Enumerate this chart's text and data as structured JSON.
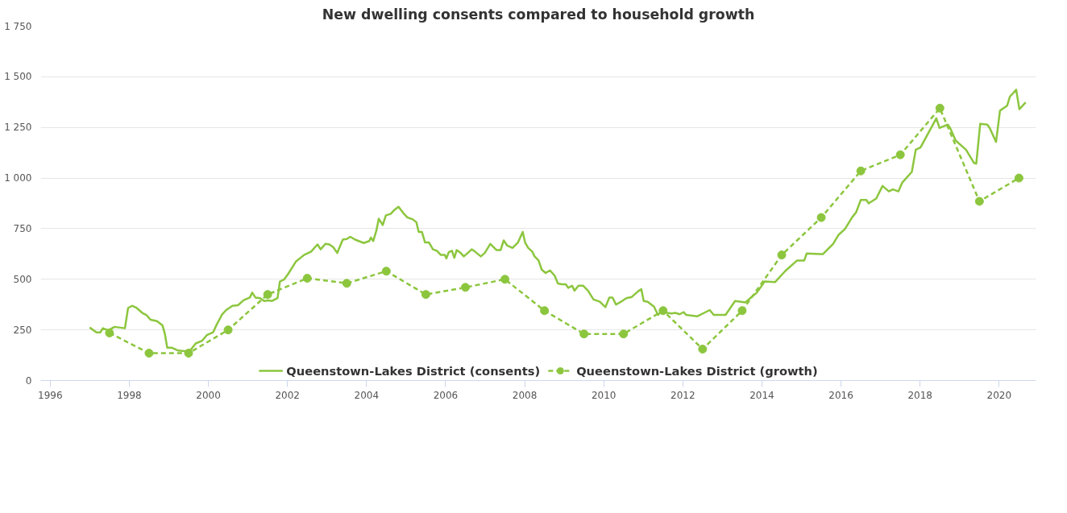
{
  "chart_data": {
    "type": "line",
    "title": "New dwelling consents compared to household growth",
    "xlim": [
      1995.76,
      2020.93
    ],
    "xticks": [
      1996,
      1998,
      2000,
      2002,
      2004,
      2006,
      2008,
      2010,
      2012,
      2014,
      2016,
      2018,
      2020
    ],
    "ylim": [
      0,
      1750
    ],
    "yticks": [
      0,
      250,
      500,
      750,
      {
        "value": 1000,
        "label": "1 000"
      },
      {
        "value": 1250,
        "label": "1 250"
      },
      {
        "value": 1500,
        "label": "1 500"
      },
      {
        "value": 1750,
        "label": "1 750"
      }
    ],
    "grid": "y",
    "legend": "bottom",
    "series": [
      {
        "name": "Queenstown-Lakes District (consents)",
        "color": "#8cc63e",
        "line_style": "solid",
        "marker": "none",
        "x": [
          1997.0,
          1997.17,
          1997.27,
          1997.33,
          1997.47,
          1997.63,
          1997.89,
          1997.97,
          1998.07,
          1998.19,
          1998.33,
          1998.43,
          1998.54,
          1998.7,
          1998.84,
          1998.9,
          1998.96,
          1999.08,
          1999.24,
          1999.4,
          1999.54,
          1999.68,
          1999.84,
          1999.96,
          2000.12,
          2000.21,
          2000.35,
          2000.45,
          2000.61,
          2000.75,
          2000.89,
          2001.05,
          2001.11,
          2001.19,
          2001.31,
          2001.41,
          2001.51,
          2001.61,
          2001.75,
          2001.81,
          2001.92,
          2002.02,
          2002.22,
          2002.42,
          2002.6,
          2002.76,
          2002.84,
          2002.96,
          2003.06,
          2003.16,
          2003.26,
          2003.4,
          2003.5,
          2003.59,
          2003.71,
          2003.93,
          2004.07,
          2004.11,
          2004.17,
          2004.25,
          2004.31,
          2004.41,
          2004.49,
          2004.61,
          2004.69,
          2004.81,
          2004.93,
          2005.03,
          2005.17,
          2005.26,
          2005.32,
          2005.4,
          2005.48,
          2005.58,
          2005.68,
          2005.78,
          2005.88,
          2005.98,
          2006.02,
          2006.08,
          2006.16,
          2006.22,
          2006.28,
          2006.38,
          2006.46,
          2006.56,
          2006.66,
          2006.76,
          2006.89,
          2006.99,
          2007.13,
          2007.29,
          2007.39,
          2007.47,
          2007.55,
          2007.69,
          2007.83,
          2007.95,
          2008.01,
          2008.09,
          2008.19,
          2008.25,
          2008.35,
          2008.43,
          2008.53,
          2008.64,
          2008.76,
          2008.84,
          2008.94,
          2009.04,
          2009.1,
          2009.2,
          2009.26,
          2009.36,
          2009.48,
          2009.6,
          2009.74,
          2009.9,
          2010.04,
          2010.14,
          2010.22,
          2010.31,
          2010.41,
          2010.57,
          2010.71,
          2010.87,
          2010.95,
          2011.01,
          2011.11,
          2011.27,
          2011.37,
          2011.47,
          2011.61,
          2011.71,
          2011.81,
          2011.92,
          2012.02,
          2012.08,
          2012.36,
          2012.68,
          2012.78,
          2013.08,
          2013.32,
          2013.58,
          2013.87,
          2014.07,
          2014.33,
          2014.59,
          2014.89,
          2015.07,
          2015.13,
          2015.54,
          2015.8,
          2015.94,
          2016.1,
          2016.28,
          2016.38,
          2016.5,
          2016.64,
          2016.7,
          2016.89,
          2017.05,
          2017.21,
          2017.31,
          2017.45,
          2017.55,
          2017.79,
          2017.89,
          2018.01,
          2018.41,
          2018.49,
          2018.7,
          2018.76,
          2018.9,
          2019.16,
          2019.36,
          2019.42,
          2019.52,
          2019.7,
          2019.76,
          2019.92,
          2020.02,
          2020.2,
          2020.27,
          2020.43,
          2020.51,
          2020.67
        ],
        "values": [
          262,
          238,
          238,
          258,
          248,
          265,
          258,
          358,
          369,
          358,
          334,
          324,
          300,
          293,
          272,
          231,
          162,
          162,
          148,
          145,
          148,
          183,
          196,
          224,
          238,
          276,
          327,
          348,
          369,
          372,
          396,
          410,
          434,
          410,
          407,
          393,
          396,
          393,
          407,
          489,
          500,
          527,
          589,
          620,
          637,
          672,
          648,
          675,
          672,
          658,
          630,
          696,
          699,
          710,
          696,
          679,
          689,
          706,
          689,
          741,
          799,
          768,
          816,
          823,
          840,
          858,
          827,
          806,
          796,
          782,
          734,
          734,
          682,
          682,
          648,
          641,
          620,
          620,
          603,
          634,
          641,
          606,
          644,
          630,
          613,
          630,
          648,
          634,
          613,
          630,
          675,
          644,
          644,
          692,
          668,
          655,
          682,
          734,
          682,
          655,
          637,
          613,
          593,
          548,
          531,
          544,
          517,
          479,
          475,
          475,
          458,
          468,
          444,
          468,
          468,
          444,
          400,
          389,
          362,
          410,
          410,
          375,
          386,
          407,
          413,
          441,
          451,
          393,
          389,
          365,
          324,
          345,
          334,
          331,
          334,
          327,
          338,
          324,
          317,
          348,
          324,
          324,
          393,
          386,
          434,
          489,
          486,
          541,
          593,
          593,
          627,
          624,
          675,
          720,
          748,
          806,
          830,
          892,
          892,
          875,
          899,
          961,
          934,
          944,
          934,
          978,
          1030,
          1140,
          1151,
          1295,
          1247,
          1264,
          1247,
          1185,
          1140,
          1075,
          1071,
          1268,
          1264,
          1247,
          1178,
          1333,
          1357,
          1402,
          1436,
          1340,
          1374
        ]
      },
      {
        "name": "Queenstown-Lakes District (growth)",
        "color": "#8cc63e",
        "line_style": "dashed",
        "marker": "circle",
        "x": [
          1997.5,
          1998.5,
          1999.5,
          2000.5,
          2001.5,
          2002.5,
          2003.5,
          2004.5,
          2005.5,
          2006.5,
          2007.5,
          2008.5,
          2009.5,
          2010.5,
          2011.5,
          2012.5,
          2013.5,
          2014.5,
          2015.5,
          2016.5,
          2017.5,
          2018.5,
          2019.5,
          2020.5
        ],
        "values": [
          235,
          135,
          135,
          250,
          425,
          505,
          480,
          540,
          425,
          460,
          500,
          345,
          230,
          230,
          345,
          155,
          345,
          620,
          805,
          1035,
          1115,
          1345,
          885,
          1000
        ]
      }
    ]
  }
}
